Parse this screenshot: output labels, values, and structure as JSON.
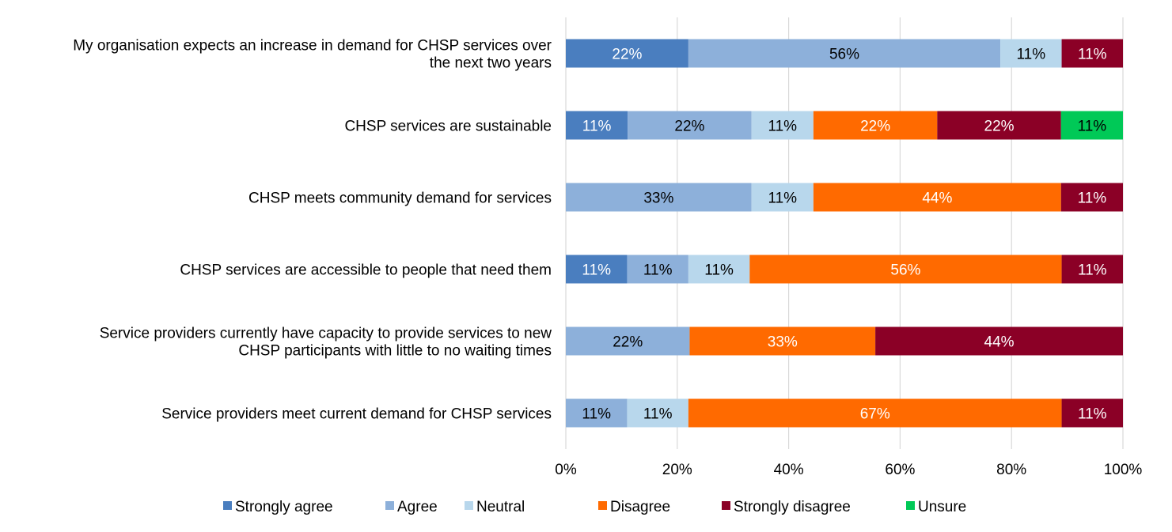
{
  "chart_data": {
    "type": "bar",
    "orientation": "horizontal",
    "stacked": "percent",
    "categories": [
      [
        "My organisation expects an increase in demand for CHSP services over",
        "the next two years"
      ],
      [
        "CHSP services are sustainable"
      ],
      [
        "CHSP meets community demand for services"
      ],
      [
        "CHSP services are accessible to people that need them"
      ],
      [
        "Service providers currently have capacity to provide services to new",
        "CHSP participants with little to no waiting times"
      ],
      [
        "Service providers meet current demand for CHSP services"
      ]
    ],
    "series": [
      {
        "name": "Strongly agree",
        "color": "#4a7ebf",
        "text_color": "#ffffff",
        "values": [
          22,
          11,
          0,
          11,
          0,
          0
        ]
      },
      {
        "name": "Agree",
        "color": "#8db0da",
        "text_color": "#000000",
        "values": [
          56,
          22,
          33,
          11,
          22,
          11
        ]
      },
      {
        "name": "Neutral",
        "color": "#b8d7ec",
        "text_color": "#000000",
        "values": [
          11,
          11,
          11,
          11,
          0,
          11
        ]
      },
      {
        "name": "Disagree",
        "color": "#ff6a00",
        "text_color": "#ffffff",
        "values": [
          0,
          22,
          44,
          56,
          33,
          67
        ]
      },
      {
        "name": "Strongly disagree",
        "color": "#8b0026",
        "text_color": "#ffffff",
        "values": [
          11,
          22,
          11,
          11,
          44,
          11
        ]
      },
      {
        "name": "Unsure",
        "color": "#00c957",
        "text_color": "#000000",
        "values": [
          0,
          11,
          0,
          0,
          0,
          0
        ]
      }
    ],
    "x_ticks": [
      "0%",
      "20%",
      "40%",
      "60%",
      "80%",
      "100%"
    ],
    "xlim": [
      0,
      100
    ],
    "grid": true,
    "legend_position": "bottom"
  }
}
